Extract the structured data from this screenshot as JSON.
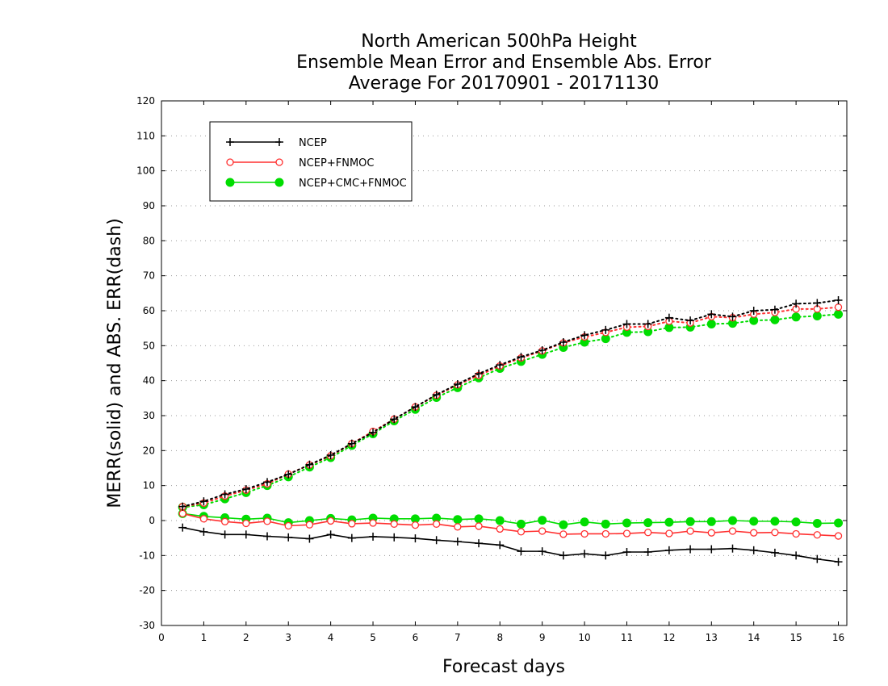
{
  "chart_data": {
    "type": "line",
    "title_lines": [
      "North American 500hPa Height",
      "Ensemble Mean Error and Ensemble Abs. Error",
      "Average For 20170901 - 20171130"
    ],
    "xlabel": "Forecast days",
    "ylabel": "MERR(solid) and ABS. ERR(dash)",
    "xlim": [
      0,
      16.2
    ],
    "ylim": [
      -30,
      120
    ],
    "x_ticks": [
      0,
      1,
      2,
      3,
      4,
      5,
      6,
      7,
      8,
      9,
      10,
      11,
      12,
      13,
      14,
      15,
      16
    ],
    "y_ticks": [
      -30,
      -20,
      -10,
      0,
      10,
      20,
      30,
      40,
      50,
      60,
      70,
      80,
      90,
      100,
      110,
      120
    ],
    "grid": "horizontal dotted",
    "legend_position": "top-left",
    "x": [
      0.5,
      1,
      1.5,
      2,
      2.5,
      3,
      3.5,
      4,
      4.5,
      5,
      5.5,
      6,
      6.5,
      7,
      7.5,
      8,
      8.5,
      9,
      9.5,
      10,
      10.5,
      11,
      11.5,
      12,
      12.5,
      13,
      13.5,
      14,
      14.5,
      15,
      15.5,
      16
    ],
    "series": [
      {
        "name": "NCEP",
        "color": "#000000",
        "marker": "plus",
        "merr": [
          -2,
          -3.2,
          -4,
          -4,
          -4.5,
          -4.8,
          -5.2,
          -4,
          -5,
          -4.6,
          -4.8,
          -5.1,
          -5.6,
          -6,
          -6.5,
          -7,
          -8.8,
          -8.8,
          -10,
          -9.5,
          -10,
          -9,
          -9,
          -8.5,
          -8.2,
          -8.2,
          -8,
          -8.5,
          -9.2,
          -10,
          -11,
          -11.8
        ],
        "abs_err": [
          4,
          5.5,
          7.5,
          9,
          11,
          13.2,
          16,
          18.7,
          22,
          25.2,
          29,
          32.5,
          36,
          39,
          42,
          44.5,
          46.8,
          48.7,
          51,
          53,
          54.5,
          56.2,
          56.2,
          58,
          57.2,
          59,
          58.3,
          60,
          60.3,
          62,
          62.2,
          63
        ]
      },
      {
        "name": "NCEP+FNMOC",
        "color": "#ff3030",
        "marker": "open-circle",
        "merr": [
          2,
          0.5,
          -0.3,
          -0.8,
          -0.2,
          -1.5,
          -1.2,
          -0.1,
          -0.9,
          -0.7,
          -1,
          -1.3,
          -1,
          -1.8,
          -1.6,
          -2.4,
          -3.2,
          -3,
          -3.9,
          -3.8,
          -3.8,
          -3.7,
          -3.4,
          -3.7,
          -3,
          -3.5,
          -3,
          -3.5,
          -3.4,
          -3.8,
          -4.1,
          -4.4
        ],
        "abs_err": [
          4,
          5,
          7,
          8.7,
          10.5,
          13.3,
          15.9,
          18.5,
          22,
          25.5,
          29,
          32.5,
          35.8,
          38.8,
          41.5,
          44.2,
          46.5,
          48.5,
          50.8,
          52.5,
          53.8,
          55.3,
          55.5,
          57,
          56.5,
          58.3,
          58,
          59,
          59.5,
          60.5,
          60.5,
          61
        ]
      },
      {
        "name": "NCEP+CMC+FNMOC",
        "color": "#00dd00",
        "marker": "filled-circle",
        "merr": [
          2,
          1.2,
          0.8,
          0.4,
          0.7,
          -0.6,
          0,
          0.6,
          0.2,
          0.7,
          0.5,
          0.5,
          0.7,
          0.3,
          0.5,
          0,
          -1,
          0.1,
          -1.2,
          -0.4,
          -1,
          -0.7,
          -0.6,
          -0.5,
          -0.3,
          -0.3,
          0,
          -0.2,
          -0.2,
          -0.4,
          -0.8,
          -0.7
        ],
        "abs_err": [
          3.8,
          4.5,
          6.2,
          8,
          10,
          12.5,
          15.3,
          18,
          21.5,
          24.8,
          28.5,
          31.8,
          35.2,
          38,
          40.8,
          43.5,
          45.5,
          47.5,
          49.5,
          51,
          52,
          53.8,
          54,
          55.2,
          55.3,
          56.2,
          56.4,
          57.2,
          57.4,
          58.2,
          58.5,
          59
        ]
      }
    ]
  }
}
